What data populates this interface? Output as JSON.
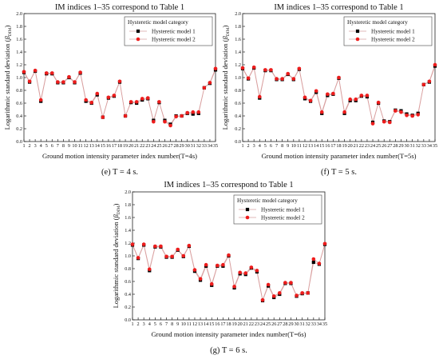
{
  "chart_data": [
    {
      "type": "line",
      "panel_caption": "(e) T = 4 s.",
      "title": "IM indices 1–35 correspond to Table 1",
      "xlabel": "Ground motion intensity parameter index number(T=4s)",
      "ylabel": "Logarithmic standard deviation (β_DIM)",
      "ylabel_plain": "Logarithmic standard deviation (",
      "ylabel_sym": "β",
      "ylabel_sub": "DIM",
      "ylabel_close": ")",
      "legend_title": "Hysteretic model category",
      "legend_position": "top-right",
      "ylim": [
        0,
        2.0
      ],
      "xlim": [
        1,
        35
      ],
      "yticks": [
        "0.0",
        "0.2",
        "0.4",
        "0.6",
        "0.8",
        "1.0",
        "1.2",
        "1.4",
        "1.6",
        "1.8",
        "2.0"
      ],
      "x": [
        1,
        2,
        3,
        4,
        5,
        6,
        7,
        8,
        9,
        10,
        11,
        12,
        13,
        14,
        15,
        16,
        17,
        18,
        19,
        20,
        21,
        22,
        23,
        24,
        25,
        26,
        27,
        28,
        29,
        30,
        31,
        32,
        33,
        34,
        35
      ],
      "series": [
        {
          "name": "Hysteretic model 1",
          "color": "#000000",
          "marker": "square",
          "values": [
            1.08,
            0.93,
            1.1,
            0.63,
            1.06,
            1.06,
            0.92,
            0.92,
            1.0,
            0.92,
            1.07,
            0.63,
            0.6,
            0.73,
            0.38,
            0.68,
            0.71,
            0.93,
            0.4,
            0.61,
            0.6,
            0.65,
            0.67,
            0.33,
            0.61,
            0.33,
            0.27,
            0.4,
            0.4,
            0.44,
            0.43,
            0.44,
            0.84,
            0.91,
            1.12
          ]
        },
        {
          "name": "Hysteretic model 2",
          "color": "#ee1c1c",
          "marker": "circle",
          "values": [
            1.09,
            0.94,
            1.11,
            0.65,
            1.07,
            1.07,
            0.93,
            0.93,
            1.01,
            0.93,
            1.08,
            0.65,
            0.61,
            0.75,
            0.38,
            0.69,
            0.72,
            0.94,
            0.4,
            0.62,
            0.62,
            0.67,
            0.68,
            0.31,
            0.62,
            0.31,
            0.25,
            0.39,
            0.4,
            0.45,
            0.46,
            0.46,
            0.84,
            0.92,
            1.14
          ]
        }
      ]
    },
    {
      "type": "line",
      "panel_caption": "(f) T = 5 s.",
      "title": "IM indices 1–35 correspond to Table 1",
      "xlabel": "Ground motion intensity parameter index number(T=5s)",
      "ylabel": "Logarithmic standard deviation (β_DIM)",
      "ylabel_plain": "Logarithmic standard deviation (",
      "ylabel_sym": "β",
      "ylabel_sub": "DIM",
      "ylabel_close": ")",
      "legend_title": "Hysteretic model category",
      "legend_position": "top-right",
      "ylim": [
        0,
        2.0
      ],
      "xlim": [
        1,
        35
      ],
      "yticks": [
        "0.0",
        "0.2",
        "0.4",
        "0.6",
        "0.8",
        "1.0",
        "1.2",
        "1.4",
        "1.6",
        "1.8",
        "2.0"
      ],
      "x": [
        1,
        2,
        3,
        4,
        5,
        6,
        7,
        8,
        9,
        10,
        11,
        12,
        13,
        14,
        15,
        16,
        17,
        18,
        19,
        20,
        21,
        22,
        23,
        24,
        25,
        26,
        27,
        28,
        29,
        30,
        31,
        32,
        33,
        34,
        35
      ],
      "series": [
        {
          "name": "Hysteretic model 1",
          "color": "#000000",
          "marker": "square",
          "values": [
            1.14,
            0.98,
            1.15,
            0.68,
            1.11,
            1.11,
            0.97,
            0.97,
            1.05,
            0.97,
            1.13,
            0.67,
            0.63,
            0.77,
            0.44,
            0.72,
            0.74,
            0.99,
            0.44,
            0.64,
            0.64,
            0.71,
            0.7,
            0.3,
            0.6,
            0.32,
            0.31,
            0.49,
            0.48,
            0.43,
            0.41,
            0.44,
            0.89,
            0.93,
            1.18
          ]
        },
        {
          "name": "Hysteretic model 2",
          "color": "#ee1c1c",
          "marker": "circle",
          "values": [
            1.15,
            0.99,
            1.16,
            0.7,
            1.12,
            1.12,
            0.98,
            0.98,
            1.06,
            0.98,
            1.14,
            0.69,
            0.64,
            0.79,
            0.46,
            0.74,
            0.75,
            1.0,
            0.46,
            0.66,
            0.66,
            0.72,
            0.72,
            0.28,
            0.61,
            0.31,
            0.3,
            0.48,
            0.46,
            0.41,
            0.4,
            0.42,
            0.89,
            0.94,
            1.2
          ]
        }
      ]
    },
    {
      "type": "line",
      "panel_caption": "(g) T = 6 s.",
      "title": "IM indices 1–35 correspond to Table 1",
      "xlabel": "Ground motion intensity parameter index number(T=6s)",
      "ylabel": "Logarithmic standard deviation (β_DIM)",
      "ylabel_plain": "Logarithmic standard deviation (",
      "ylabel_sym": "β",
      "ylabel_sub": "DIM",
      "ylabel_close": ")",
      "legend_title": "Hysteretic model category",
      "legend_position": "top-right",
      "ylim": [
        0,
        2.0
      ],
      "xlim": [
        1,
        35
      ],
      "yticks": [
        "0.0",
        "0.2",
        "0.4",
        "0.6",
        "0.8",
        "1.0",
        "1.2",
        "1.4",
        "1.6",
        "1.8",
        "2.0"
      ],
      "x": [
        1,
        2,
        3,
        4,
        5,
        6,
        7,
        8,
        9,
        10,
        11,
        12,
        13,
        14,
        15,
        16,
        17,
        18,
        19,
        20,
        21,
        22,
        23,
        24,
        25,
        26,
        27,
        28,
        29,
        30,
        31,
        32,
        33,
        34,
        35
      ],
      "series": [
        {
          "name": "Hysteretic model 1",
          "color": "#000000",
          "marker": "square",
          "values": [
            1.17,
            0.96,
            1.17,
            0.77,
            1.14,
            1.14,
            0.98,
            0.98,
            1.09,
            0.99,
            1.15,
            0.76,
            0.62,
            0.84,
            0.54,
            0.84,
            0.84,
            1.0,
            0.5,
            0.72,
            0.71,
            0.81,
            0.75,
            0.3,
            0.53,
            0.35,
            0.4,
            0.57,
            0.57,
            0.37,
            0.41,
            0.42,
            0.9,
            0.87,
            1.18
          ]
        },
        {
          "name": "Hysteretic model 2",
          "color": "#ee1c1c",
          "marker": "circle",
          "values": [
            1.18,
            0.97,
            1.18,
            0.79,
            1.15,
            1.15,
            0.99,
            0.99,
            1.1,
            1.0,
            1.16,
            0.78,
            0.64,
            0.86,
            0.56,
            0.85,
            0.86,
            1.01,
            0.52,
            0.74,
            0.73,
            0.82,
            0.77,
            0.31,
            0.55,
            0.37,
            0.42,
            0.58,
            0.58,
            0.38,
            0.42,
            0.42,
            0.95,
            0.88,
            1.19
          ]
        }
      ]
    }
  ]
}
